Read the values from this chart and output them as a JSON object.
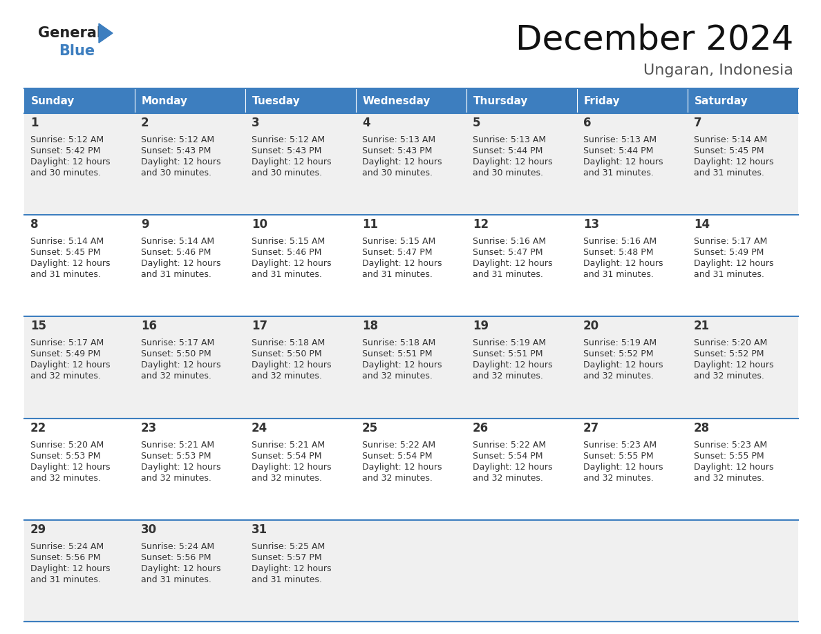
{
  "title": "December 2024",
  "subtitle": "Ungaran, Indonesia",
  "header_color": "#3d7ebf",
  "header_text_color": "#ffffff",
  "row_bg_even": "#f0f0f0",
  "row_bg_odd": "#ffffff",
  "border_color": "#3d7ebf",
  "text_color": "#333333",
  "days_of_week": [
    "Sunday",
    "Monday",
    "Tuesday",
    "Wednesday",
    "Thursday",
    "Friday",
    "Saturday"
  ],
  "calendar_data": [
    [
      {
        "day": "1",
        "sunrise": "5:12 AM",
        "sunset": "5:42 PM",
        "daylight_h": "12 hours",
        "daylight_m": "30 minutes"
      },
      {
        "day": "2",
        "sunrise": "5:12 AM",
        "sunset": "5:43 PM",
        "daylight_h": "12 hours",
        "daylight_m": "30 minutes"
      },
      {
        "day": "3",
        "sunrise": "5:12 AM",
        "sunset": "5:43 PM",
        "daylight_h": "12 hours",
        "daylight_m": "30 minutes"
      },
      {
        "day": "4",
        "sunrise": "5:13 AM",
        "sunset": "5:43 PM",
        "daylight_h": "12 hours",
        "daylight_m": "30 minutes"
      },
      {
        "day": "5",
        "sunrise": "5:13 AM",
        "sunset": "5:44 PM",
        "daylight_h": "12 hours",
        "daylight_m": "30 minutes"
      },
      {
        "day": "6",
        "sunrise": "5:13 AM",
        "sunset": "5:44 PM",
        "daylight_h": "12 hours",
        "daylight_m": "31 minutes"
      },
      {
        "day": "7",
        "sunrise": "5:14 AM",
        "sunset": "5:45 PM",
        "daylight_h": "12 hours",
        "daylight_m": "31 minutes"
      }
    ],
    [
      {
        "day": "8",
        "sunrise": "5:14 AM",
        "sunset": "5:45 PM",
        "daylight_h": "12 hours",
        "daylight_m": "31 minutes"
      },
      {
        "day": "9",
        "sunrise": "5:14 AM",
        "sunset": "5:46 PM",
        "daylight_h": "12 hours",
        "daylight_m": "31 minutes"
      },
      {
        "day": "10",
        "sunrise": "5:15 AM",
        "sunset": "5:46 PM",
        "daylight_h": "12 hours",
        "daylight_m": "31 minutes"
      },
      {
        "day": "11",
        "sunrise": "5:15 AM",
        "sunset": "5:47 PM",
        "daylight_h": "12 hours",
        "daylight_m": "31 minutes"
      },
      {
        "day": "12",
        "sunrise": "5:16 AM",
        "sunset": "5:47 PM",
        "daylight_h": "12 hours",
        "daylight_m": "31 minutes"
      },
      {
        "day": "13",
        "sunrise": "5:16 AM",
        "sunset": "5:48 PM",
        "daylight_h": "12 hours",
        "daylight_m": "31 minutes"
      },
      {
        "day": "14",
        "sunrise": "5:17 AM",
        "sunset": "5:49 PM",
        "daylight_h": "12 hours",
        "daylight_m": "31 minutes"
      }
    ],
    [
      {
        "day": "15",
        "sunrise": "5:17 AM",
        "sunset": "5:49 PM",
        "daylight_h": "12 hours",
        "daylight_m": "32 minutes"
      },
      {
        "day": "16",
        "sunrise": "5:17 AM",
        "sunset": "5:50 PM",
        "daylight_h": "12 hours",
        "daylight_m": "32 minutes"
      },
      {
        "day": "17",
        "sunrise": "5:18 AM",
        "sunset": "5:50 PM",
        "daylight_h": "12 hours",
        "daylight_m": "32 minutes"
      },
      {
        "day": "18",
        "sunrise": "5:18 AM",
        "sunset": "5:51 PM",
        "daylight_h": "12 hours",
        "daylight_m": "32 minutes"
      },
      {
        "day": "19",
        "sunrise": "5:19 AM",
        "sunset": "5:51 PM",
        "daylight_h": "12 hours",
        "daylight_m": "32 minutes"
      },
      {
        "day": "20",
        "sunrise": "5:19 AM",
        "sunset": "5:52 PM",
        "daylight_h": "12 hours",
        "daylight_m": "32 minutes"
      },
      {
        "day": "21",
        "sunrise": "5:20 AM",
        "sunset": "5:52 PM",
        "daylight_h": "12 hours",
        "daylight_m": "32 minutes"
      }
    ],
    [
      {
        "day": "22",
        "sunrise": "5:20 AM",
        "sunset": "5:53 PM",
        "daylight_h": "12 hours",
        "daylight_m": "32 minutes"
      },
      {
        "day": "23",
        "sunrise": "5:21 AM",
        "sunset": "5:53 PM",
        "daylight_h": "12 hours",
        "daylight_m": "32 minutes"
      },
      {
        "day": "24",
        "sunrise": "5:21 AM",
        "sunset": "5:54 PM",
        "daylight_h": "12 hours",
        "daylight_m": "32 minutes"
      },
      {
        "day": "25",
        "sunrise": "5:22 AM",
        "sunset": "5:54 PM",
        "daylight_h": "12 hours",
        "daylight_m": "32 minutes"
      },
      {
        "day": "26",
        "sunrise": "5:22 AM",
        "sunset": "5:54 PM",
        "daylight_h": "12 hours",
        "daylight_m": "32 minutes"
      },
      {
        "day": "27",
        "sunrise": "5:23 AM",
        "sunset": "5:55 PM",
        "daylight_h": "12 hours",
        "daylight_m": "32 minutes"
      },
      {
        "day": "28",
        "sunrise": "5:23 AM",
        "sunset": "5:55 PM",
        "daylight_h": "12 hours",
        "daylight_m": "32 minutes"
      }
    ],
    [
      {
        "day": "29",
        "sunrise": "5:24 AM",
        "sunset": "5:56 PM",
        "daylight_h": "12 hours",
        "daylight_m": "31 minutes"
      },
      {
        "day": "30",
        "sunrise": "5:24 AM",
        "sunset": "5:56 PM",
        "daylight_h": "12 hours",
        "daylight_m": "31 minutes"
      },
      {
        "day": "31",
        "sunrise": "5:25 AM",
        "sunset": "5:57 PM",
        "daylight_h": "12 hours",
        "daylight_m": "31 minutes"
      },
      null,
      null,
      null,
      null
    ]
  ],
  "logo_general_color": "#222222",
  "logo_blue_color": "#3d7ebf",
  "title_fontsize": 36,
  "subtitle_fontsize": 16,
  "header_fontsize": 11,
  "day_num_fontsize": 12,
  "cell_text_fontsize": 9
}
